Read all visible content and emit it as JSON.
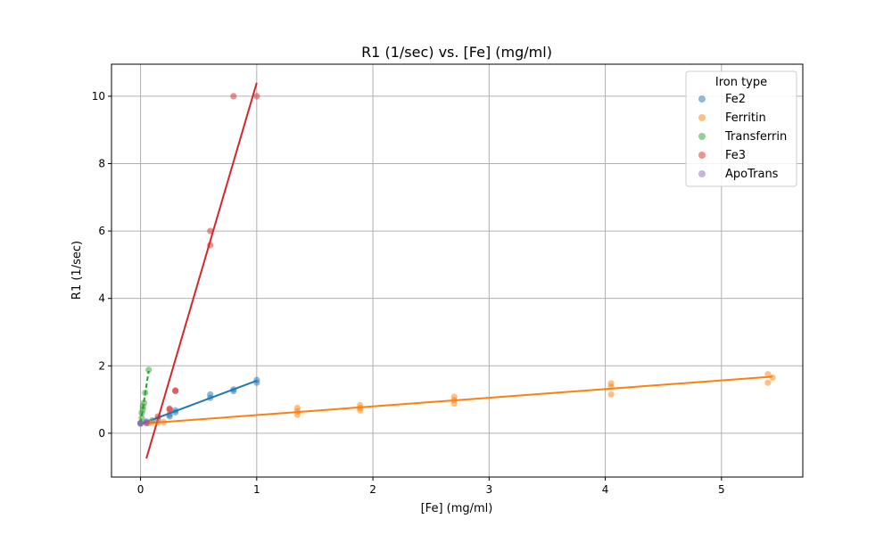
{
  "chart_data": {
    "type": "scatter",
    "title": "R1 (1/sec) vs. [Fe] (mg/ml)",
    "xlabel": "[Fe] (mg/ml)",
    "ylabel": "R1 (1/sec)",
    "xlim": [
      -0.25,
      5.7
    ],
    "ylim": [
      -1.3,
      10.95
    ],
    "xticks": [
      0,
      1,
      2,
      3,
      4,
      5
    ],
    "yticks": [
      0,
      2,
      4,
      6,
      8,
      10
    ],
    "grid": true,
    "legend": {
      "title": "Iron type",
      "placement": "top-right"
    },
    "series": [
      {
        "name": "Fe2",
        "color": "#1f77b4",
        "points": [
          [
            0,
            0.3
          ],
          [
            0.05,
            0.35
          ],
          [
            0.1,
            0.38
          ],
          [
            0.15,
            0.42
          ],
          [
            0.25,
            0.5
          ],
          [
            0.25,
            0.55
          ],
          [
            0.3,
            0.62
          ],
          [
            0.3,
            0.68
          ],
          [
            0.6,
            1.05
          ],
          [
            0.6,
            1.15
          ],
          [
            0.8,
            1.25
          ],
          [
            0.8,
            1.3
          ],
          [
            1.0,
            1.5
          ],
          [
            1.0,
            1.58
          ]
        ],
        "fit": {
          "x0": 0.0,
          "x1": 1.0,
          "y0": 0.27,
          "y1": 1.56,
          "style": "solid"
        }
      },
      {
        "name": "Ferritin",
        "color": "#ff7f0e",
        "points": [
          [
            0.07,
            0.3
          ],
          [
            0.1,
            0.32
          ],
          [
            0.15,
            0.32
          ],
          [
            0.2,
            0.33
          ],
          [
            1.35,
            0.55
          ],
          [
            1.35,
            0.65
          ],
          [
            1.35,
            0.75
          ],
          [
            1.89,
            0.68
          ],
          [
            1.89,
            0.75
          ],
          [
            1.89,
            0.83
          ],
          [
            2.7,
            0.88
          ],
          [
            2.7,
            0.98
          ],
          [
            2.7,
            1.08
          ],
          [
            4.05,
            1.15
          ],
          [
            4.05,
            1.38
          ],
          [
            4.05,
            1.48
          ],
          [
            5.4,
            1.5
          ],
          [
            5.4,
            1.75
          ],
          [
            5.44,
            1.65
          ]
        ],
        "fit": {
          "x0": 0.07,
          "x1": 5.44,
          "y0": 0.3,
          "y1": 1.68,
          "style": "solid"
        }
      },
      {
        "name": "Transferrin",
        "color": "#2ca02c",
        "points": [
          [
            0.0,
            0.3
          ],
          [
            0.01,
            0.45
          ],
          [
            0.01,
            0.6
          ],
          [
            0.02,
            0.7
          ],
          [
            0.02,
            0.8
          ],
          [
            0.03,
            0.9
          ],
          [
            0.04,
            1.2
          ],
          [
            0.07,
            1.88
          ]
        ],
        "fit": {
          "x0": 0.0,
          "x1": 0.07,
          "y0": 0.3,
          "y1": 1.85,
          "style": "dashed"
        }
      },
      {
        "name": "Fe3",
        "color": "#d62728",
        "points": [
          [
            0.05,
            0.3
          ],
          [
            0.15,
            0.5
          ],
          [
            0.25,
            0.7
          ],
          [
            0.25,
            0.73
          ],
          [
            0.3,
            1.25
          ],
          [
            0.3,
            1.27
          ],
          [
            0.6,
            5.58
          ],
          [
            0.6,
            6.0
          ],
          [
            0.8,
            10.0
          ],
          [
            1.0,
            10.0
          ]
        ],
        "fit": {
          "x0": 0.05,
          "x1": 1.0,
          "y0": -0.75,
          "y1": 10.4,
          "style": "solid"
        }
      },
      {
        "name": "ApoTrans",
        "color": "#9467bd",
        "points": [
          [
            0.0,
            0.28
          ],
          [
            0.0,
            0.3
          ],
          [
            0.05,
            0.32
          ]
        ],
        "fit": null
      }
    ]
  }
}
